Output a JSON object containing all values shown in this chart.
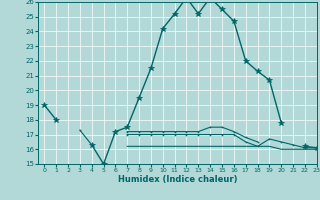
{
  "title": "",
  "xlabel": "Humidex (Indice chaleur)",
  "bg_color": "#b2d8d8",
  "grid_color": "#ffffff",
  "line_color": "#006666",
  "y_main": [
    19,
    18,
    null,
    null,
    16.3,
    15,
    17.2,
    17.5,
    19.5,
    21.5,
    24.2,
    25.2,
    26.3,
    25.2,
    26.3,
    25.5,
    24.7,
    22.0,
    21.3,
    20.7,
    17.8,
    null,
    16.2,
    16.1
  ],
  "y_line_a": [
    null,
    null,
    null,
    17.3,
    16.3,
    null,
    null,
    17.2,
    17.2,
    17.2,
    17.2,
    17.2,
    17.2,
    17.2,
    17.5,
    17.5,
    17.2,
    16.8,
    16.5,
    null,
    null,
    null,
    null,
    null
  ],
  "y_line_b": [
    null,
    null,
    null,
    null,
    null,
    null,
    null,
    17.0,
    17.0,
    17.0,
    17.0,
    17.0,
    17.0,
    17.0,
    17.0,
    17.0,
    17.0,
    16.5,
    16.2,
    16.7,
    16.5,
    16.3,
    16.1,
    16.1
  ],
  "y_line_c": [
    null,
    null,
    null,
    null,
    null,
    null,
    null,
    16.2,
    16.2,
    16.2,
    16.2,
    16.2,
    16.2,
    16.2,
    16.2,
    16.2,
    16.2,
    16.2,
    16.2,
    16.2,
    16.0,
    16.0,
    16.0,
    16.0
  ],
  "ylim": [
    15,
    26
  ],
  "xlim": [
    -0.5,
    23
  ],
  "yticks": [
    15,
    16,
    17,
    18,
    19,
    20,
    21,
    22,
    23,
    24,
    25,
    26
  ],
  "xticks": [
    0,
    1,
    2,
    3,
    4,
    5,
    6,
    7,
    8,
    9,
    10,
    11,
    12,
    13,
    14,
    15,
    16,
    17,
    18,
    19,
    20,
    21,
    22,
    23
  ]
}
